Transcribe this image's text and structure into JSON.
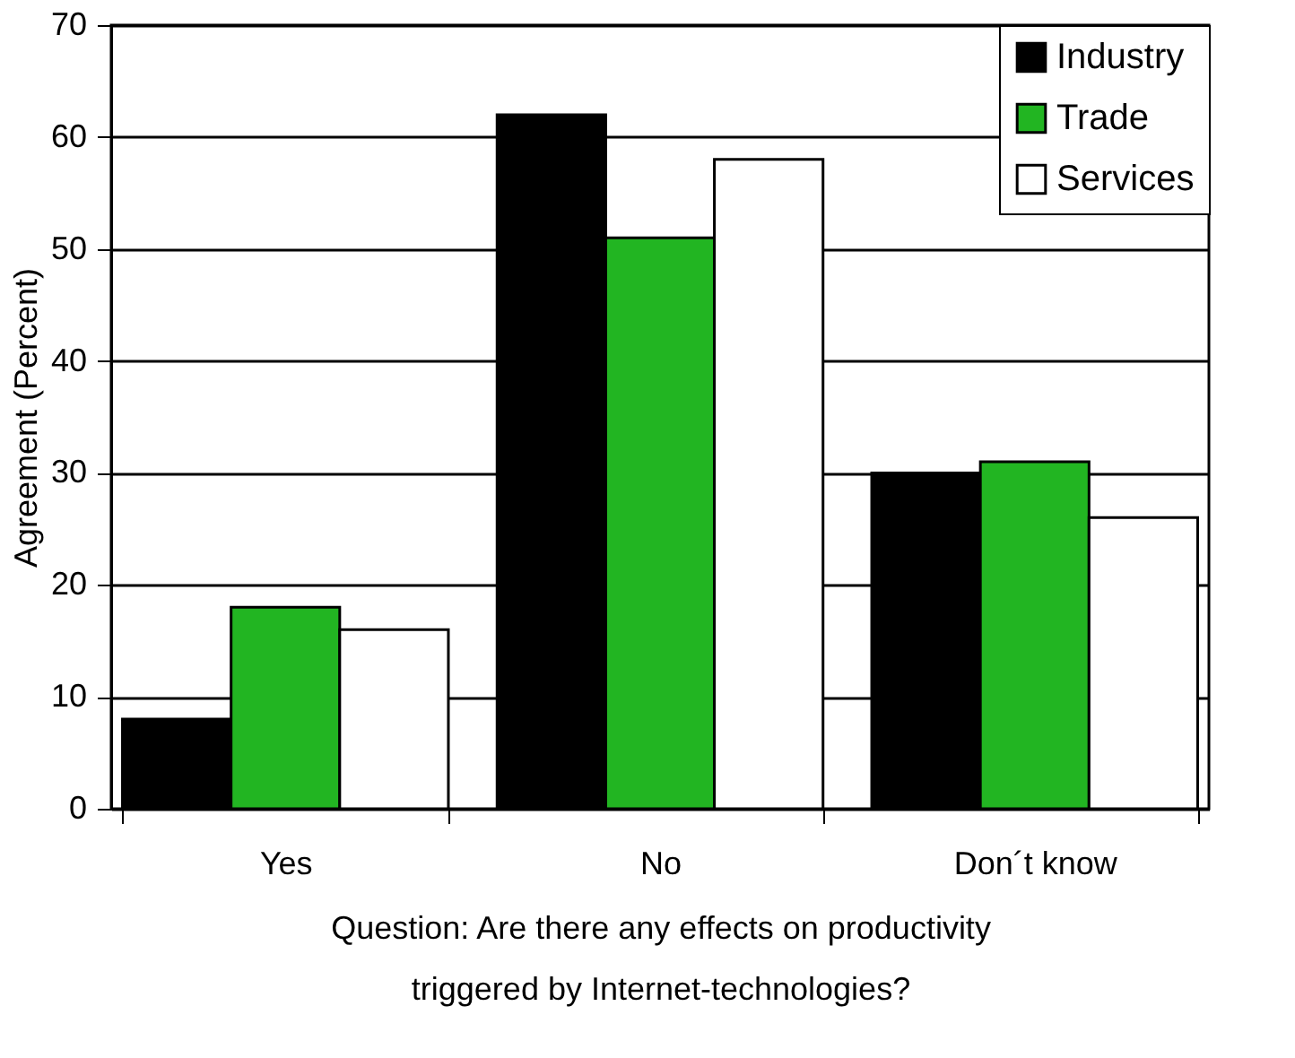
{
  "chart_data": {
    "type": "bar",
    "categories": [
      "Yes",
      "No",
      "Don´t know"
    ],
    "series": [
      {
        "name": "Industry",
        "color": "#000000",
        "values": [
          8,
          62,
          30
        ]
      },
      {
        "name": "Trade",
        "color": "#22b522",
        "values": [
          18,
          51,
          31
        ]
      },
      {
        "name": "Services",
        "color": "#ffffff",
        "values": [
          16,
          58,
          26
        ]
      }
    ],
    "ylabel": "Agreement (Percent)",
    "xlabel": "Question: Are there any effects on productivity\ntriggered by Internet-technologies?",
    "ylim": [
      0,
      70
    ],
    "yticks": [
      0,
      10,
      20,
      30,
      40,
      50,
      60,
      70
    ],
    "grid": "y",
    "legend": "top right"
  }
}
